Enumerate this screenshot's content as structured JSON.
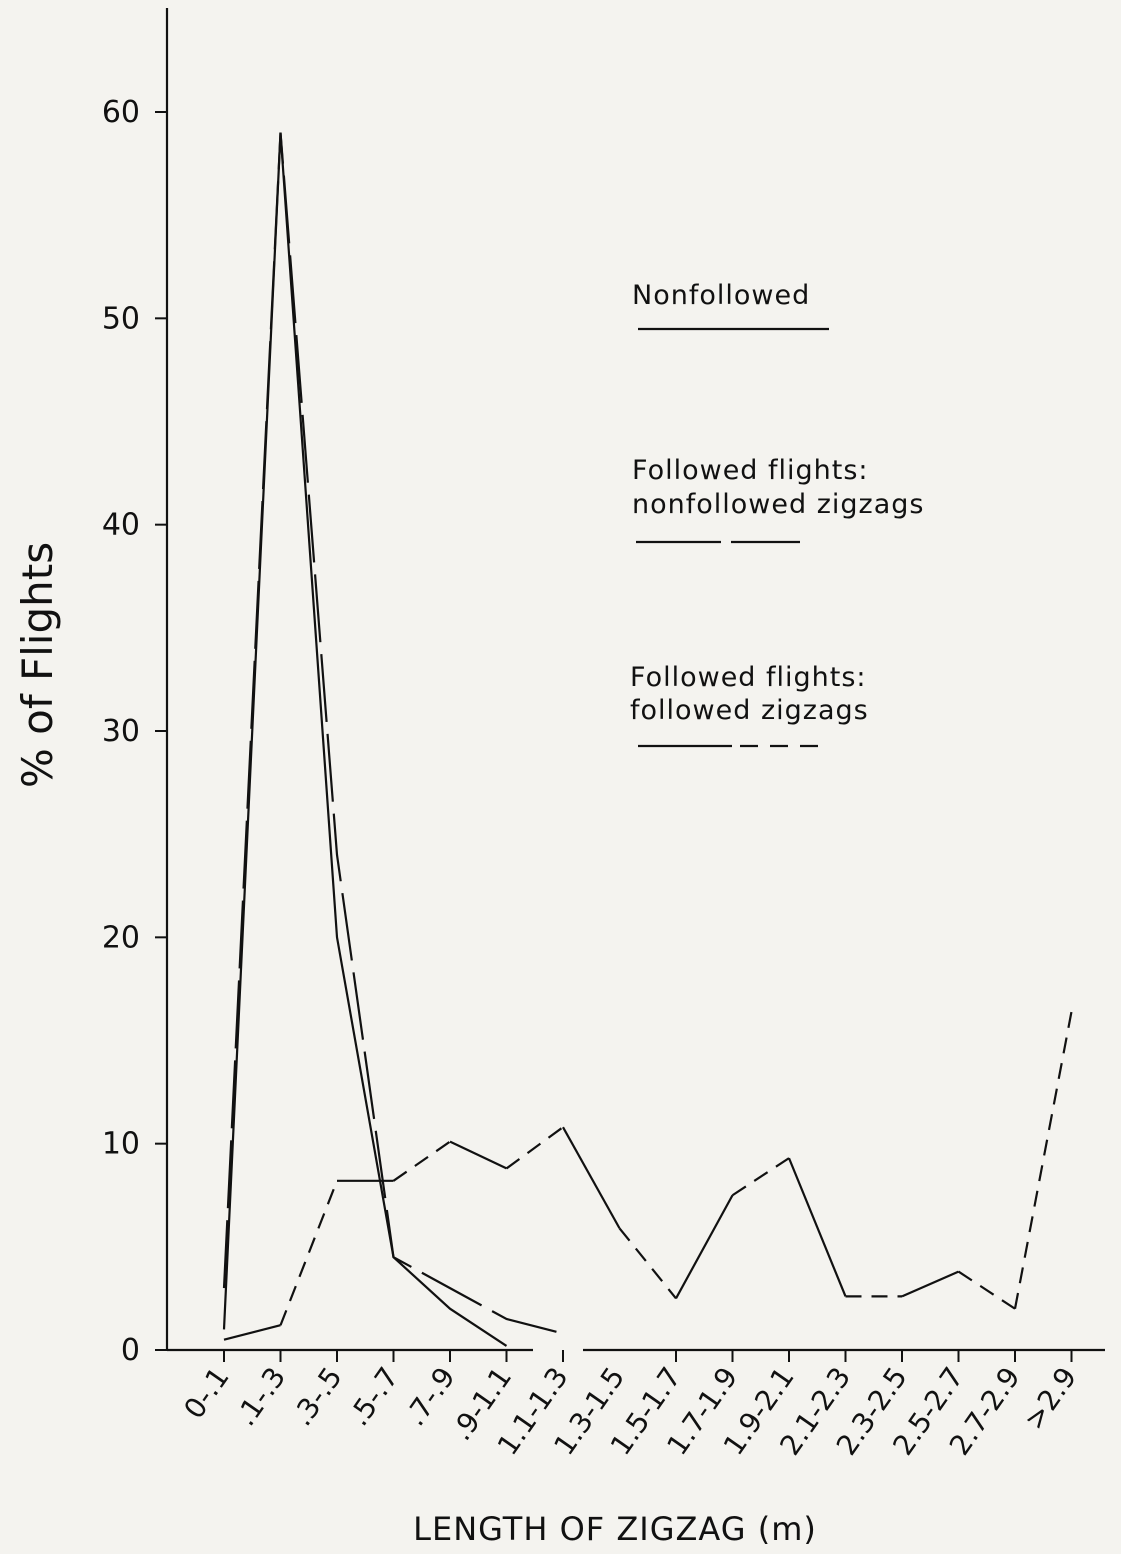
{
  "chart_data": {
    "type": "line",
    "title": "",
    "xlabel": "LENGTH OF ZIGZAG (m)",
    "ylabel": "% of Flights",
    "ylim": [
      0,
      65
    ],
    "yticks": [
      "0",
      "10",
      "20",
      "30",
      "40",
      "50",
      "60"
    ],
    "categories": [
      "0-.1",
      ".1-.3",
      ".3-.5",
      ".5-.7",
      ".7-.9",
      ".9-1.1",
      "1.1-1.3",
      "1.3-1.5",
      "1.5-1.7",
      "1.7-1.9",
      "1.9-2.1",
      "2.1-2.3",
      "2.3-2.5",
      "2.5-2.7",
      "2.7-2.9",
      ">2.9"
    ],
    "series": [
      {
        "name": "Nonfollowed",
        "style": "solid",
        "values": [
          1,
          59,
          20,
          4.5,
          2,
          0.2,
          null,
          null,
          null,
          null,
          null,
          null,
          null,
          null,
          null,
          null
        ]
      },
      {
        "name": "Followed flights: nonfollowed zigzags",
        "style": "long-dash",
        "values": [
          3,
          59,
          24,
          4.5,
          3,
          1.5,
          0.8,
          null,
          null,
          null,
          null,
          null,
          null,
          null,
          null,
          null
        ]
      },
      {
        "name": "Followed flights: followed zigzags",
        "style": "mixed",
        "values": [
          0.5,
          1.2,
          8.2,
          8.2,
          10.1,
          8.8,
          10.8,
          5.9,
          2.5,
          7.5,
          9.3,
          2.6,
          2.6,
          3.8,
          2,
          16.4
        ]
      }
    ],
    "legend_position": "top-right",
    "grid": false
  }
}
